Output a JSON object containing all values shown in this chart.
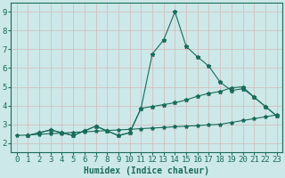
{
  "xlabel": "Humidex (Indice chaleur)",
  "bg_color": "#cce8e8",
  "grid_color": "#c8d8d8",
  "line_color": "#1a6b5a",
  "xlim": [
    -0.5,
    23.5
  ],
  "ylim": [
    1.5,
    9.5
  ],
  "xticks": [
    0,
    1,
    2,
    3,
    4,
    5,
    6,
    7,
    8,
    9,
    10,
    11,
    12,
    13,
    14,
    15,
    16,
    17,
    18,
    19,
    20,
    21,
    22,
    23
  ],
  "yticks": [
    2,
    3,
    4,
    5,
    6,
    7,
    8,
    9
  ],
  "s1_x": [
    1,
    2,
    3,
    4,
    5,
    6,
    7,
    8,
    9,
    10,
    11,
    12,
    13,
    14,
    15,
    16,
    17,
    18,
    19,
    20,
    21,
    22,
    23
  ],
  "s1_y": [
    2.4,
    2.55,
    2.7,
    2.55,
    2.4,
    2.65,
    2.9,
    2.65,
    2.4,
    2.55,
    3.85,
    6.75,
    7.5,
    9.0,
    7.15,
    6.6,
    6.1,
    5.25,
    4.8,
    4.9,
    4.45,
    3.95,
    3.45
  ],
  "s2_x": [
    1,
    2,
    3,
    4,
    5,
    6,
    7,
    8,
    9,
    10,
    11,
    12,
    13,
    14,
    15,
    16,
    17,
    18,
    19,
    20,
    21,
    22,
    23
  ],
  "s2_y": [
    2.4,
    2.55,
    2.7,
    2.55,
    2.4,
    2.65,
    2.9,
    2.65,
    2.4,
    2.55,
    3.85,
    3.95,
    4.05,
    4.15,
    4.3,
    4.5,
    4.65,
    4.75,
    4.95,
    5.0,
    4.45,
    3.95,
    3.45
  ],
  "s3_x": [
    0,
    1,
    2,
    3,
    4,
    5,
    6,
    7,
    8,
    9,
    10,
    11,
    12,
    13,
    14,
    15,
    16,
    17,
    18,
    19,
    20,
    21,
    22,
    23
  ],
  "s3_y": [
    2.4,
    2.43,
    2.47,
    2.5,
    2.53,
    2.57,
    2.6,
    2.63,
    2.67,
    2.7,
    2.73,
    2.77,
    2.8,
    2.83,
    2.87,
    2.9,
    2.93,
    2.97,
    3.0,
    3.1,
    3.2,
    3.3,
    3.4,
    3.5
  ],
  "font_size_xlabel": 7,
  "font_size_ticks": 6.5,
  "line_width": 0.8,
  "marker_size": 3.5
}
